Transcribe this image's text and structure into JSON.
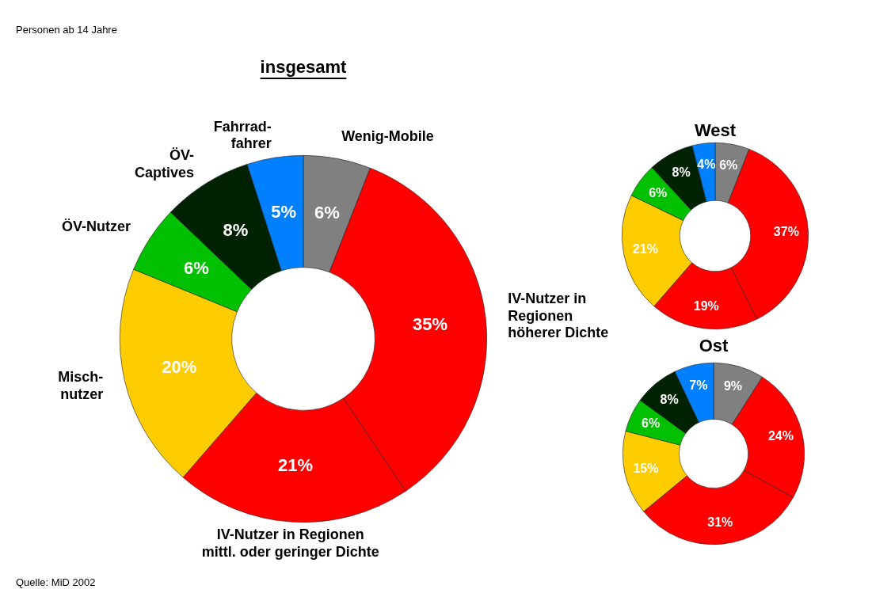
{
  "chart_data": [
    {
      "type": "donut",
      "title": "insgesamt",
      "categories": [
        "Wenig-Mobile",
        "IV-Nutzer in\nRegionen\nhöherer Dichte",
        "IV-Nutzer in Regionen\nmittl. oder geringer Dichte",
        "Misch-\nnutzer",
        "ÖV-Nutzer",
        "ÖV-\nCaptives",
        "Fahrrad-\nfahrer"
      ],
      "values": [
        6,
        35,
        21,
        20,
        6,
        8,
        5
      ],
      "value_labels": [
        "6%",
        "35%",
        "21%",
        "20%",
        "6%",
        "8%",
        "5%"
      ],
      "colors": [
        "#808080",
        "#ff0000",
        "#ff0000",
        "#ffcc00",
        "#00c000",
        "#002200",
        "#0080ff"
      ],
      "legend": false,
      "annotations": [
        "Personen ab 14 Jahre",
        "Quelle: MiD 2002"
      ]
    },
    {
      "type": "donut",
      "title": "West",
      "categories": [
        null,
        null,
        null,
        null,
        null,
        null,
        null
      ],
      "values": [
        6,
        37,
        19,
        21,
        6,
        8,
        4
      ],
      "value_labels": [
        "6%",
        "37%",
        "19%",
        "21%",
        "6%",
        "8%",
        "4%"
      ],
      "colors": [
        "#808080",
        "#ff0000",
        "#ff0000",
        "#ffcc00",
        "#00c000",
        "#002200",
        "#0080ff"
      ],
      "legend": false
    },
    {
      "type": "donut",
      "title": "Ost",
      "categories": [
        null,
        null,
        null,
        null,
        null,
        null,
        null
      ],
      "values": [
        9,
        24,
        31,
        15,
        6,
        8,
        7
      ],
      "value_labels": [
        "9%",
        "24%",
        "31%",
        "15%",
        "6%",
        "8%",
        "7%"
      ],
      "colors": [
        "#808080",
        "#ff0000",
        "#ff0000",
        "#ffcc00",
        "#00c000",
        "#002200",
        "#0080ff"
      ],
      "legend": false
    }
  ]
}
